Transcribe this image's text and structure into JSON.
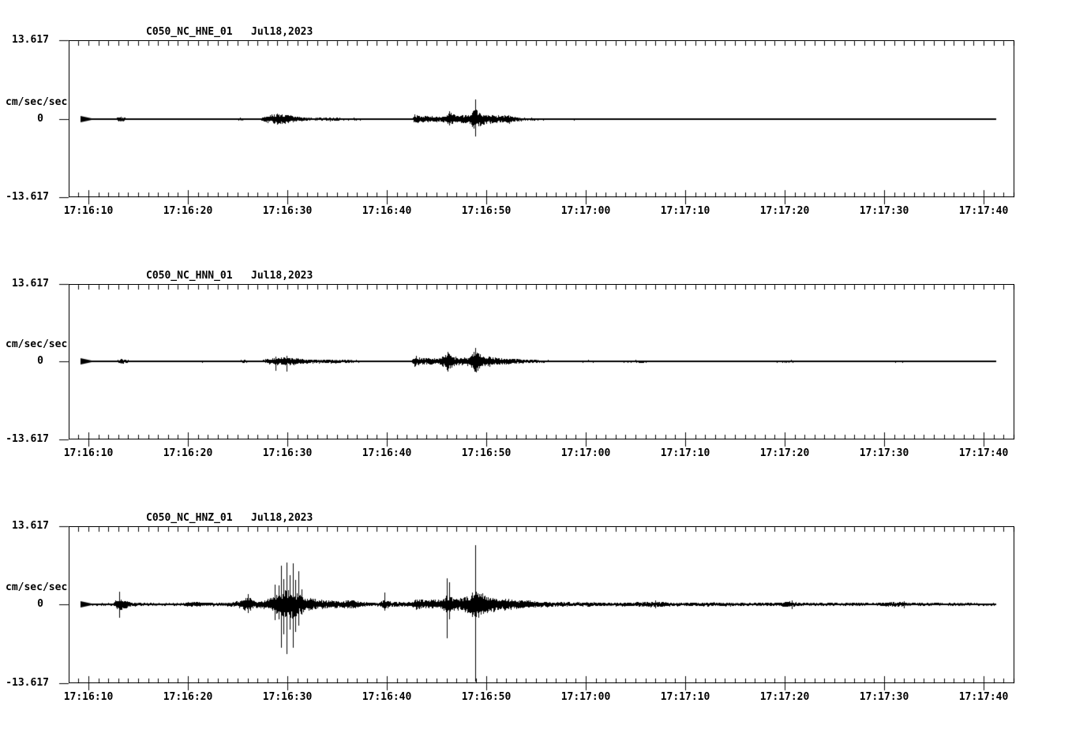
{
  "page": {
    "background_color": "#ffffff",
    "foreground_color": "#000000"
  },
  "chart_data": [
    {
      "type": "line",
      "subtype": "seismogram-trace",
      "title": "C050_NC_HNE_01   Jul18,2023",
      "ylabel": "cm/sec/sec",
      "y_max_label": "13.617",
      "y_zero_label": "0",
      "y_min_label": "-13.617",
      "ylim": [
        -13.617,
        13.617
      ],
      "amp_unit": "cm/sec/sec",
      "x_axis_origin": "17:16:00",
      "xtick_seconds": [
        10,
        20,
        30,
        40,
        50,
        60,
        70,
        80,
        90,
        100
      ],
      "xtick_labels": [
        "17:16:10",
        "17:16:20",
        "17:16:30",
        "17:16:40",
        "17:16:50",
        "17:17:00",
        "17:17:10",
        "17:17:20",
        "17:17:30",
        "17:17:40"
      ],
      "minor_tick_step_seconds": 1,
      "trace_span_seconds": [
        9.2,
        101.2
      ],
      "grid": false,
      "envelope": [
        [
          9.2,
          0.1
        ],
        [
          12.6,
          0.1
        ],
        [
          13.0,
          0.38
        ],
        [
          13.4,
          0.45
        ],
        [
          13.9,
          0.12
        ],
        [
          20.8,
          0.12
        ],
        [
          21.4,
          0.22
        ],
        [
          22.0,
          0.12
        ],
        [
          24.9,
          0.16
        ],
        [
          25.3,
          0.26
        ],
        [
          25.8,
          0.12
        ],
        [
          27.3,
          0.16
        ],
        [
          27.8,
          0.6
        ],
        [
          28.4,
          0.82
        ],
        [
          29.0,
          0.95
        ],
        [
          29.6,
          0.9
        ],
        [
          30.1,
          0.82
        ],
        [
          30.7,
          0.48
        ],
        [
          31.5,
          0.34
        ],
        [
          32.5,
          0.3
        ],
        [
          33.5,
          0.3
        ],
        [
          34.5,
          0.33
        ],
        [
          35.5,
          0.25
        ],
        [
          36.5,
          0.22
        ],
        [
          37.5,
          0.2
        ],
        [
          38.5,
          0.14
        ],
        [
          40.0,
          0.12
        ],
        [
          42.5,
          0.12
        ],
        [
          42.8,
          0.9
        ],
        [
          43.3,
          0.5
        ],
        [
          44.2,
          0.55
        ],
        [
          45.2,
          0.48
        ],
        [
          45.9,
          0.5
        ],
        [
          46.3,
          1.3
        ],
        [
          46.8,
          0.7
        ],
        [
          47.5,
          0.75
        ],
        [
          48.2,
          0.8
        ],
        [
          48.8,
          1.8
        ],
        [
          49.4,
          1.1
        ],
        [
          50.1,
          0.9
        ],
        [
          50.8,
          0.7
        ],
        [
          51.6,
          0.6
        ],
        [
          52.3,
          0.75
        ],
        [
          53.0,
          0.4
        ],
        [
          54.0,
          0.27
        ],
        [
          55.5,
          0.18
        ],
        [
          57.5,
          0.14
        ],
        [
          58.9,
          0.2
        ],
        [
          59.5,
          0.12
        ],
        [
          63.2,
          0.18
        ],
        [
          63.8,
          0.11
        ],
        [
          70.0,
          0.1
        ],
        [
          73.9,
          0.16
        ],
        [
          74.5,
          0.1
        ],
        [
          80.0,
          0.1
        ],
        [
          83.7,
          0.14
        ],
        [
          84.2,
          0.1
        ],
        [
          90.0,
          0.1
        ],
        [
          94.5,
          0.13
        ],
        [
          95.0,
          0.1
        ],
        [
          101.2,
          0.09
        ]
      ],
      "spikes": [
        [
          29.0,
          0.95,
          0.95
        ],
        [
          46.3,
          1.35,
          1.1
        ],
        [
          48.85,
          3.42,
          3.0
        ]
      ]
    },
    {
      "type": "line",
      "subtype": "seismogram-trace",
      "title": "C050_NC_HNN_01   Jul18,2023",
      "ylabel": "cm/sec/sec",
      "y_max_label": "13.617",
      "y_zero_label": "0",
      "y_min_label": "-13.617",
      "ylim": [
        -13.617,
        13.617
      ],
      "amp_unit": "cm/sec/sec",
      "x_axis_origin": "17:16:00",
      "xtick_seconds": [
        10,
        20,
        30,
        40,
        50,
        60,
        70,
        80,
        90,
        100
      ],
      "xtick_labels": [
        "17:16:10",
        "17:16:20",
        "17:16:30",
        "17:16:40",
        "17:16:50",
        "17:17:00",
        "17:17:10",
        "17:17:20",
        "17:17:30",
        "17:17:40"
      ],
      "minor_tick_step_seconds": 1,
      "trace_span_seconds": [
        9.2,
        101.2
      ],
      "grid": false,
      "envelope": [
        [
          9.2,
          0.12
        ],
        [
          12.8,
          0.13
        ],
        [
          13.2,
          0.5
        ],
        [
          13.7,
          0.3
        ],
        [
          14.3,
          0.13
        ],
        [
          21.0,
          0.14
        ],
        [
          21.5,
          0.2
        ],
        [
          22.1,
          0.13
        ],
        [
          25.2,
          0.2
        ],
        [
          25.7,
          0.3
        ],
        [
          26.2,
          0.14
        ],
        [
          27.4,
          0.2
        ],
        [
          28.0,
          0.45
        ],
        [
          28.7,
          0.62
        ],
        [
          29.4,
          0.72
        ],
        [
          30.1,
          0.85
        ],
        [
          30.8,
          0.6
        ],
        [
          31.8,
          0.38
        ],
        [
          33.0,
          0.32
        ],
        [
          34.2,
          0.35
        ],
        [
          35.4,
          0.28
        ],
        [
          36.6,
          0.26
        ],
        [
          37.8,
          0.18
        ],
        [
          39.5,
          0.14
        ],
        [
          42.4,
          0.13
        ],
        [
          42.8,
          1.05
        ],
        [
          43.4,
          0.55
        ],
        [
          44.4,
          0.6
        ],
        [
          45.3,
          0.55
        ],
        [
          46.1,
          1.6
        ],
        [
          46.7,
          0.8
        ],
        [
          47.5,
          0.62
        ],
        [
          48.3,
          0.8
        ],
        [
          48.9,
          2.1
        ],
        [
          49.6,
          1.0
        ],
        [
          50.4,
          0.85
        ],
        [
          51.3,
          0.62
        ],
        [
          52.3,
          0.58
        ],
        [
          53.3,
          0.4
        ],
        [
          54.5,
          0.3
        ],
        [
          56.0,
          0.22
        ],
        [
          58.0,
          0.17
        ],
        [
          61.0,
          0.22
        ],
        [
          61.6,
          0.15
        ],
        [
          66.0,
          0.24
        ],
        [
          66.6,
          0.14
        ],
        [
          70.0,
          0.13
        ],
        [
          74.0,
          0.18
        ],
        [
          74.6,
          0.13
        ],
        [
          80.7,
          0.22
        ],
        [
          81.3,
          0.13
        ],
        [
          85.0,
          0.12
        ],
        [
          91.8,
          0.2
        ],
        [
          92.4,
          0.12
        ],
        [
          96.0,
          0.12
        ],
        [
          101.2,
          0.11
        ]
      ],
      "spikes": [
        [
          28.8,
          0.85,
          1.6
        ],
        [
          29.9,
          0.9,
          1.9
        ],
        [
          46.1,
          1.65,
          1.8
        ],
        [
          48.9,
          2.3,
          1.85
        ]
      ]
    },
    {
      "type": "line",
      "subtype": "seismogram-trace",
      "title": "C050_NC_HNZ_01   Jul18,2023",
      "ylabel": "cm/sec/sec",
      "y_max_label": "13.617",
      "y_zero_label": "0",
      "y_min_label": "-13.617",
      "ylim": [
        -13.617,
        13.617
      ],
      "amp_unit": "cm/sec/sec",
      "x_axis_origin": "17:16:00",
      "xtick_seconds": [
        10,
        20,
        30,
        40,
        50,
        60,
        70,
        80,
        90,
        100
      ],
      "xtick_labels": [
        "17:16:10",
        "17:16:20",
        "17:16:30",
        "17:16:40",
        "17:16:50",
        "17:17:00",
        "17:17:10",
        "17:17:20",
        "17:17:30",
        "17:17:40"
      ],
      "minor_tick_step_seconds": 1,
      "trace_span_seconds": [
        9.2,
        101.2
      ],
      "grid": false,
      "envelope": [
        [
          9.2,
          0.16
        ],
        [
          12.5,
          0.25
        ],
        [
          13.0,
          1.3
        ],
        [
          13.6,
          0.75
        ],
        [
          14.3,
          0.4
        ],
        [
          15.2,
          0.28
        ],
        [
          17.0,
          0.22
        ],
        [
          19.5,
          0.25
        ],
        [
          20.4,
          0.5
        ],
        [
          21.1,
          0.45
        ],
        [
          21.9,
          0.3
        ],
        [
          23.0,
          0.28
        ],
        [
          24.0,
          0.35
        ],
        [
          24.9,
          0.5
        ],
        [
          25.5,
          1.0
        ],
        [
          26.1,
          1.3
        ],
        [
          26.7,
          0.6
        ],
        [
          27.4,
          0.7
        ],
        [
          28.1,
          0.95
        ],
        [
          28.7,
          1.6
        ],
        [
          29.3,
          2.2
        ],
        [
          29.9,
          2.6
        ],
        [
          30.5,
          2.4
        ],
        [
          31.1,
          1.9
        ],
        [
          31.7,
          1.2
        ],
        [
          32.4,
          1.05
        ],
        [
          33.2,
          0.85
        ],
        [
          34.2,
          0.7
        ],
        [
          35.3,
          0.6
        ],
        [
          36.4,
          0.85
        ],
        [
          37.2,
          0.5
        ],
        [
          38.2,
          0.35
        ],
        [
          39.2,
          0.3
        ],
        [
          39.8,
          1.0
        ],
        [
          40.4,
          0.45
        ],
        [
          41.5,
          0.4
        ],
        [
          42.5,
          0.45
        ],
        [
          42.9,
          1.0
        ],
        [
          43.6,
          0.75
        ],
        [
          44.6,
          0.85
        ],
        [
          45.5,
          0.8
        ],
        [
          46.0,
          1.6
        ],
        [
          46.6,
          1.2
        ],
        [
          47.3,
          1.1
        ],
        [
          48.0,
          1.45
        ],
        [
          48.5,
          1.8
        ],
        [
          48.9,
          2.6
        ],
        [
          49.5,
          2.0
        ],
        [
          50.2,
          1.45
        ],
        [
          51.0,
          1.2
        ],
        [
          51.9,
          1.1
        ],
        [
          52.8,
          0.85
        ],
        [
          53.7,
          0.75
        ],
        [
          54.8,
          0.58
        ],
        [
          56.0,
          0.48
        ],
        [
          57.5,
          0.4
        ],
        [
          59.0,
          0.35
        ],
        [
          60.5,
          0.42
        ],
        [
          62.0,
          0.3
        ],
        [
          63.5,
          0.33
        ],
        [
          65.0,
          0.38
        ],
        [
          66.8,
          0.5
        ],
        [
          68.0,
          0.38
        ],
        [
          69.5,
          0.3
        ],
        [
          71.0,
          0.32
        ],
        [
          73.0,
          0.36
        ],
        [
          75.0,
          0.3
        ],
        [
          77.0,
          0.28
        ],
        [
          79.0,
          0.32
        ],
        [
          80.7,
          0.55
        ],
        [
          81.5,
          0.3
        ],
        [
          83.0,
          0.28
        ],
        [
          85.0,
          0.26
        ],
        [
          87.0,
          0.3
        ],
        [
          89.0,
          0.26
        ],
        [
          91.5,
          0.45
        ],
        [
          92.5,
          0.28
        ],
        [
          94.5,
          0.26
        ],
        [
          96.5,
          0.24
        ],
        [
          98.5,
          0.26
        ],
        [
          101.2,
          0.22
        ]
      ],
      "spikes": [
        [
          13.1,
          2.2,
          2.3
        ],
        [
          26.05,
          1.8,
          1.5
        ],
        [
          28.75,
          3.4,
          2.7
        ],
        [
          29.1,
          3.3,
          2.6
        ],
        [
          29.35,
          6.7,
          7.5
        ],
        [
          29.6,
          4.4,
          5.2
        ],
        [
          29.95,
          7.3,
          8.6
        ],
        [
          30.2,
          5.0,
          4.4
        ],
        [
          30.55,
          7.1,
          7.5
        ],
        [
          30.8,
          4.2,
          4.8
        ],
        [
          31.15,
          5.7,
          3.8
        ],
        [
          31.4,
          2.6,
          1.8
        ],
        [
          39.8,
          2.05,
          1.1
        ],
        [
          46.0,
          4.55,
          5.9
        ],
        [
          46.3,
          3.8,
          2.7
        ],
        [
          48.6,
          2.1,
          2.1
        ],
        [
          48.85,
          10.3,
          13.4
        ],
        [
          67.0,
          0.7,
          0.7
        ],
        [
          80.7,
          0.75,
          0.7
        ],
        [
          92.0,
          0.6,
          0.6
        ]
      ]
    }
  ]
}
